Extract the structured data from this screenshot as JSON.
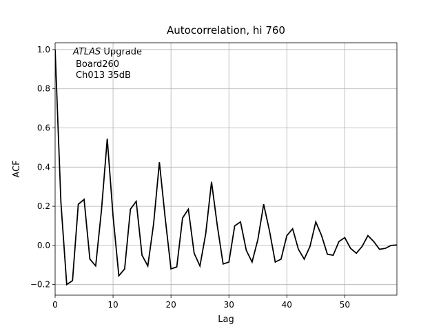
{
  "chart_data": {
    "type": "line",
    "title": "Autocorrelation, hi 760",
    "xlabel": "Lag",
    "ylabel": "ACF",
    "annotation": {
      "experiment": "ATLAS",
      "lines": [
        "Upgrade",
        "Board260",
        "Ch013 35dB"
      ]
    },
    "x": [
      0,
      1,
      2,
      3,
      4,
      5,
      6,
      7,
      8,
      9,
      10,
      11,
      12,
      13,
      14,
      15,
      16,
      17,
      18,
      19,
      20,
      21,
      22,
      23,
      24,
      25,
      26,
      27,
      28,
      29,
      30,
      31,
      32,
      33,
      34,
      35,
      36,
      37,
      38,
      39,
      40,
      41,
      42,
      43,
      44,
      45,
      46,
      47,
      48,
      49,
      50,
      51,
      52,
      53,
      54,
      55,
      56,
      57,
      58,
      59
    ],
    "series": [
      {
        "name": "ACF",
        "color": "#000000",
        "values": [
          1.0,
          0.22,
          -0.2,
          -0.18,
          0.21,
          0.235,
          -0.07,
          -0.105,
          0.18,
          0.545,
          0.15,
          -0.155,
          -0.12,
          0.185,
          0.225,
          -0.05,
          -0.105,
          0.11,
          0.425,
          0.14,
          -0.12,
          -0.11,
          0.14,
          0.185,
          -0.04,
          -0.105,
          0.06,
          0.325,
          0.1,
          -0.095,
          -0.085,
          0.1,
          0.12,
          -0.025,
          -0.085,
          0.03,
          0.21,
          0.075,
          -0.085,
          -0.07,
          0.05,
          0.085,
          -0.02,
          -0.07,
          -0.005,
          0.12,
          0.05,
          -0.045,
          -0.05,
          0.02,
          0.04,
          -0.015,
          -0.04,
          -0.005,
          0.05,
          0.02,
          -0.02,
          -0.015,
          0.0,
          0.002
        ]
      }
    ],
    "xlim": [
      0,
      59
    ],
    "ylim": [
      -0.254,
      1.035
    ],
    "xticks": [
      0,
      10,
      20,
      30,
      40,
      50
    ],
    "yticks": [
      {
        "value": -0.2,
        "label": "−0.2"
      },
      {
        "value": 0,
        "label": "0.0"
      },
      {
        "value": 0.2,
        "label": "0.2"
      },
      {
        "value": 0.4,
        "label": "0.4"
      },
      {
        "value": 0.6,
        "label": "0.6"
      },
      {
        "value": 0.8,
        "label": "0.8"
      },
      {
        "value": 1.0,
        "label": "1.0"
      }
    ],
    "grid": true
  }
}
